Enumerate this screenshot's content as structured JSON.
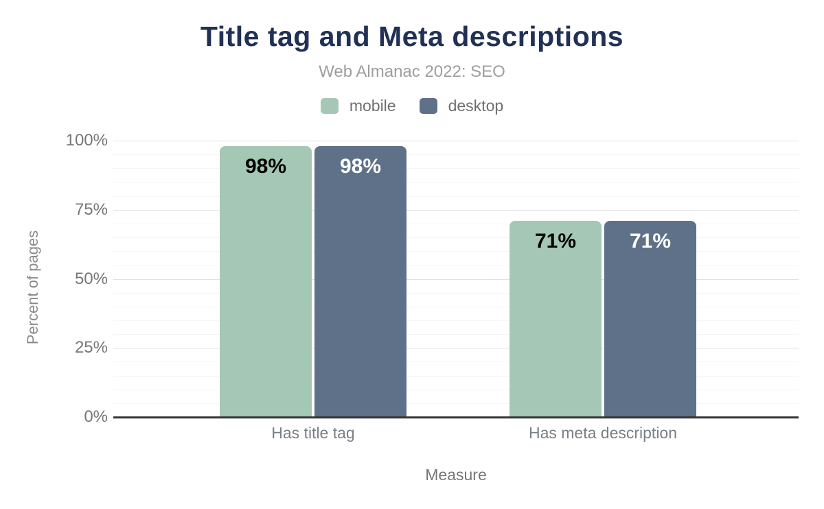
{
  "header": {
    "title": "Title tag and Meta descriptions",
    "subtitle": "Web Almanac 2022: SEO"
  },
  "colors": {
    "title_text": "#213156",
    "subtitle_text": "#9e9e9e",
    "axis_text": "#767676",
    "baseline": "#333333",
    "mobile_series": "#a5c8b6",
    "desktop_series": "#5f7189"
  },
  "chart_data": {
    "type": "bar",
    "title": "Title tag and Meta descriptions",
    "subtitle": "Web Almanac 2022: SEO",
    "categories": [
      "Has title tag",
      "Has meta description"
    ],
    "series": [
      {
        "name": "mobile",
        "color": "#a5c8b6",
        "values": [
          98,
          71
        ],
        "value_labels": [
          "98%",
          "71%"
        ],
        "value_label_color": "#000000"
      },
      {
        "name": "desktop",
        "color": "#5f7189",
        "values": [
          98,
          71
        ],
        "value_labels": [
          "98%",
          "71%"
        ],
        "value_label_color": "#ffffff"
      }
    ],
    "xlabel": "Measure",
    "ylabel": "Percent of pages",
    "ylim": [
      0,
      100
    ],
    "yticks": [
      {
        "value": 0,
        "label": "0%"
      },
      {
        "value": 25,
        "label": "25%"
      },
      {
        "value": 50,
        "label": "50%"
      },
      {
        "value": 75,
        "label": "75%"
      },
      {
        "value": 100,
        "label": "100%"
      }
    ],
    "minor_grid_step": 5,
    "grid": true,
    "legend_position": "top"
  }
}
